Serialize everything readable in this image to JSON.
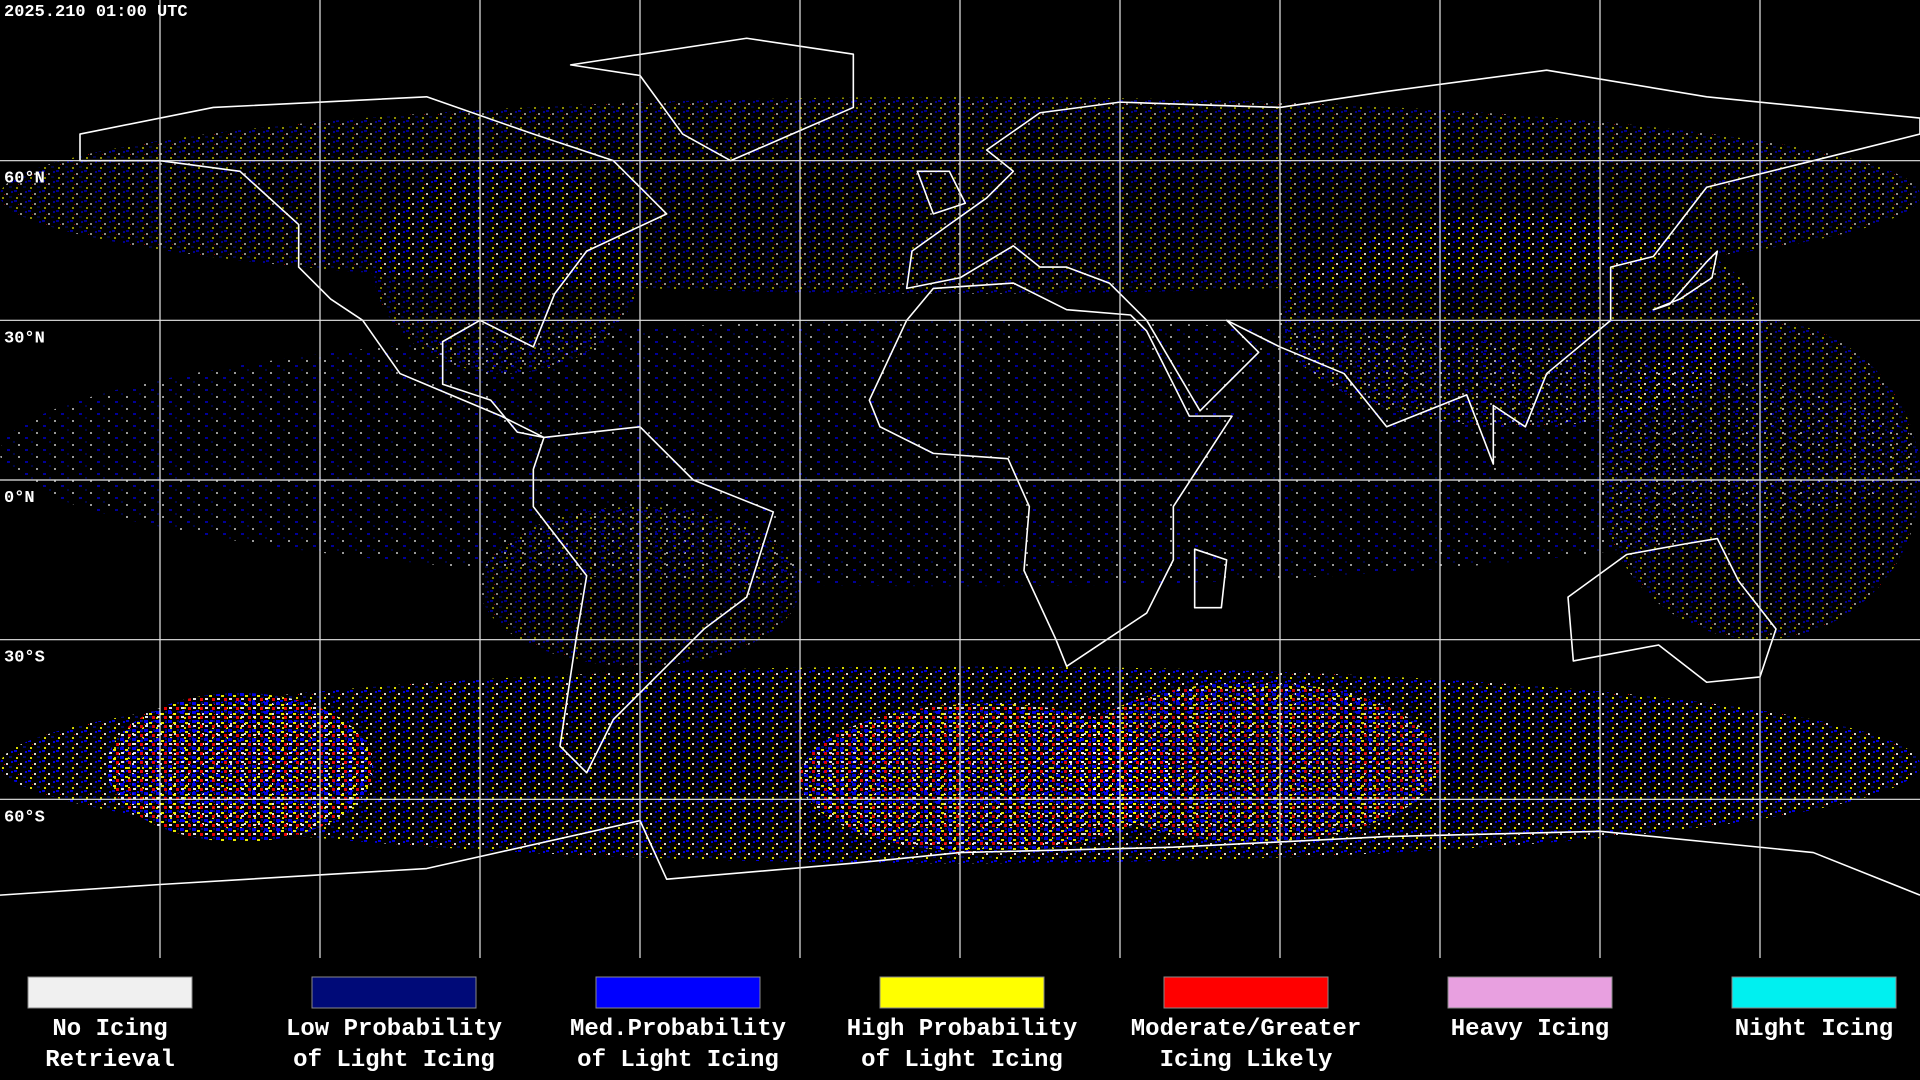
{
  "header": {
    "title": "2025.210 01:00 UTC"
  },
  "map": {
    "lat_labels": [
      "60°N",
      "30°N",
      "0°N",
      "30°S",
      "60°S"
    ]
  },
  "legend": [
    {
      "label_lines": [
        "No Icing",
        "Retrieval"
      ],
      "color": "#f0f0f0"
    },
    {
      "label_lines": [
        "Low Probability",
        "of Light Icing"
      ],
      "color": "#000a78"
    },
    {
      "label_lines": [
        "Med.Probability",
        "of Light Icing"
      ],
      "color": "#0000ff"
    },
    {
      "label_lines": [
        "High Probability",
        "of Light Icing"
      ],
      "color": "#ffff00"
    },
    {
      "label_lines": [
        "Moderate/Greater",
        "Icing Likely"
      ],
      "color": "#ff0000"
    },
    {
      "label_lines": [
        "Heavy Icing"
      ],
      "color": "#e8a0e0"
    },
    {
      "label_lines": [
        "Night Icing"
      ],
      "color": "#00f0f0"
    }
  ]
}
